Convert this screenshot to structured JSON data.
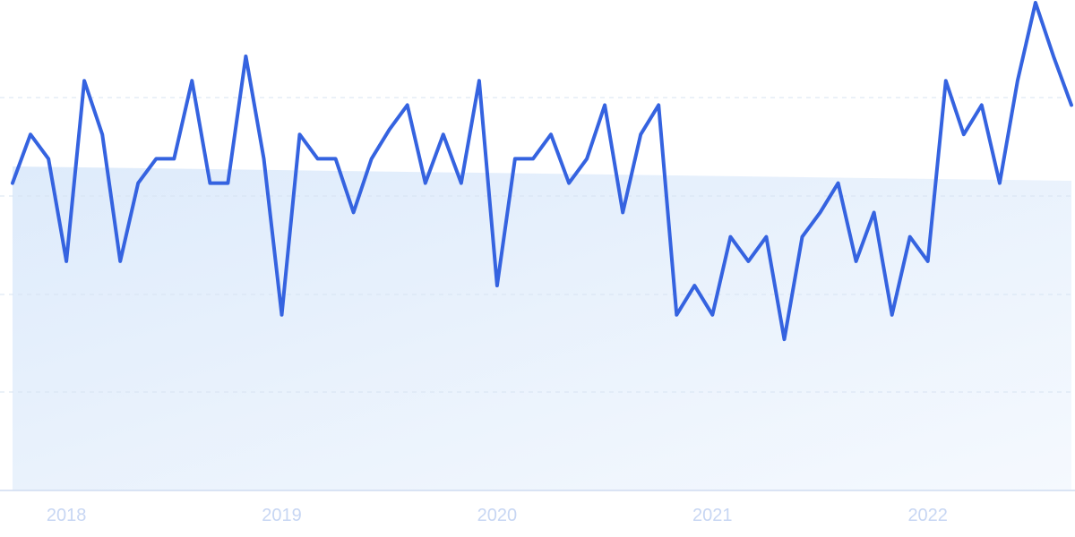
{
  "colors": {
    "line": "#3563e0",
    "area_top": "#deebfb",
    "area_bottom": "#f5f9fe",
    "grid": "#d7e3f2",
    "axis": "#cfdcf0",
    "tick_text": "#c7d6f3"
  },
  "chart_data": {
    "type": "line",
    "title": "",
    "xlabel": "",
    "ylabel": "",
    "x_tick_labels": [
      "2018",
      "2019",
      "2020",
      "2021",
      "2022"
    ],
    "x_start": "2017-10",
    "x_end": "2022-07",
    "x_step": "month",
    "ylim": [
      0,
      100
    ],
    "grid": "horizontal dashed",
    "legend": "none",
    "series": [
      {
        "values": [
          63,
          73,
          68,
          47,
          84,
          73,
          47,
          63,
          68,
          68,
          84,
          63,
          63,
          89,
          68,
          36,
          73,
          68,
          68,
          57,
          68,
          74,
          79,
          63,
          73,
          63,
          84,
          42,
          68,
          68,
          73,
          63,
          68,
          79,
          57,
          73,
          79,
          36,
          42,
          36,
          52,
          47,
          52,
          31,
          52,
          57,
          63,
          47,
          57,
          36,
          52,
          47,
          84,
          73,
          79,
          63,
          84,
          100,
          89,
          79
        ]
      }
    ]
  }
}
